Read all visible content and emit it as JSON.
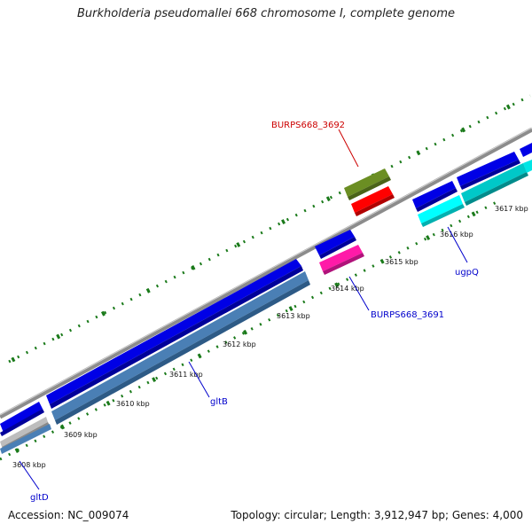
{
  "title": "Burkholderia pseudomallei 668 chromosome I, complete genome",
  "footer": {
    "accession": "Accession: NC_009074",
    "summary": "Topology: circular; Length: 3,912,947 bp; Genes: 4,000"
  },
  "tick_labels": [
    "3608 kbp",
    "3609 kbp",
    "3610 kbp",
    "3611 kbp",
    "3612 kbp",
    "3613 kbp",
    "3614 kbp",
    "3615 kbp",
    "3616 kbp",
    "3617 kbp"
  ],
  "gene_labels": {
    "gltD": "gltD",
    "gltB": "gltB",
    "burps3691": "BURPS668_3691",
    "burps3692": "BURPS668_3692",
    "ugpQ": "ugpQ"
  },
  "colors": {
    "backbone": "#8c8c8c",
    "cds_blue": "#0000e6",
    "steel_blue": "#4a7fb5",
    "cyan": "#00e5e5",
    "teal": "#00bcbc",
    "magenta": "#ff1aa8",
    "red": "#ff0000",
    "olive": "#6b8e23",
    "ticks": "#1a7a1a",
    "label_blue": "#0000cc",
    "label_red": "#cc0000"
  }
}
